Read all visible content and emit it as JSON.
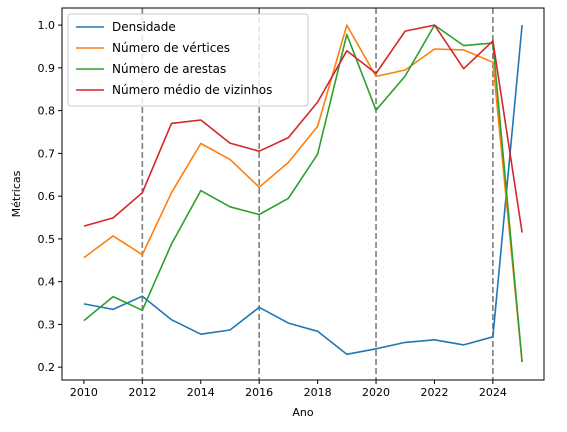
{
  "chart_data": {
    "type": "line",
    "title": "",
    "xlabel": "Ano",
    "ylabel": "Métricas",
    "xlim": [
      2009.25,
      2025.75
    ],
    "ylim": [
      0.17,
      1.04
    ],
    "xticks": [
      2010,
      2012,
      2014,
      2016,
      2018,
      2020,
      2022,
      2024
    ],
    "yticks": [
      0.2,
      0.3,
      0.4,
      0.5,
      0.6,
      0.7,
      0.8,
      0.9,
      1.0
    ],
    "ytick_labels": [
      "0.2",
      "0.3",
      "0.4",
      "0.5",
      "0.6",
      "0.7",
      "0.8",
      "0.9",
      "1.0"
    ],
    "x": [
      2010,
      2011,
      2012,
      2013,
      2014,
      2015,
      2016,
      2017,
      2018,
      2019,
      2020,
      2021,
      2022,
      2023,
      2024,
      2025
    ],
    "vlines": [
      2012,
      2016,
      2020,
      2024
    ],
    "vline_color": "#7f7f7f",
    "grid": false,
    "legend_position": "top-left",
    "series": [
      {
        "name": "Densidade",
        "color": "#1f77b4",
        "values": [
          0.348,
          0.335,
          0.366,
          0.311,
          0.277,
          0.287,
          0.34,
          0.303,
          0.284,
          0.23,
          0.243,
          0.258,
          0.264,
          0.252,
          0.271,
          1.0
        ]
      },
      {
        "name": "Número de vértices",
        "color": "#ff7f0e",
        "values": [
          0.456,
          0.507,
          0.463,
          0.608,
          0.723,
          0.686,
          0.621,
          0.679,
          0.763,
          1.0,
          0.88,
          0.895,
          0.944,
          0.942,
          0.913,
          0.212
        ]
      },
      {
        "name": "Número de arestas",
        "color": "#2ca02c",
        "values": [
          0.309,
          0.365,
          0.333,
          0.488,
          0.613,
          0.575,
          0.557,
          0.595,
          0.698,
          0.978,
          0.801,
          0.881,
          1.0,
          0.952,
          0.958,
          0.212
        ]
      },
      {
        "name": "Número médio de vizinhos",
        "color": "#d62728",
        "values": [
          0.53,
          0.549,
          0.608,
          0.77,
          0.778,
          0.724,
          0.705,
          0.737,
          0.82,
          0.94,
          0.887,
          0.986,
          1.0,
          0.898,
          0.963,
          0.515
        ]
      }
    ]
  }
}
